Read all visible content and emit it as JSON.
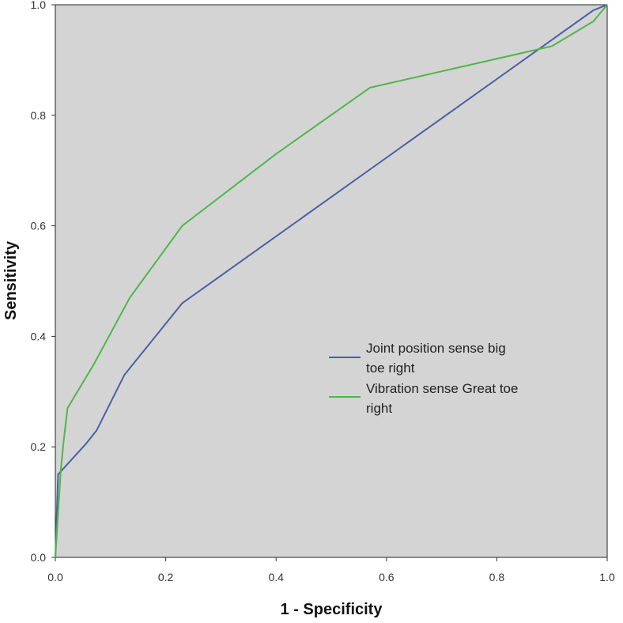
{
  "chart_data": {
    "type": "line",
    "title": "",
    "xlabel": "1 - Specificity",
    "ylabel": "Sensitivity",
    "xlim": [
      0,
      1
    ],
    "ylim": [
      0,
      1
    ],
    "xticks": [
      "0.0",
      "0.2",
      "0.4",
      "0.6",
      "0.8",
      "1.0"
    ],
    "yticks": [
      "0.0",
      "0.2",
      "0.4",
      "0.6",
      "0.8",
      "1.0"
    ],
    "grid": false,
    "legend_position": "center-right",
    "plot_background": "#d4d4d4",
    "series": [
      {
        "name": "Joint position sense big toe right",
        "legend_lines": [
          "Joint position sense big",
          "toe right"
        ],
        "color": "#4a5fa8",
        "points": [
          [
            0,
            0
          ],
          [
            0.005,
            0.15
          ],
          [
            0.055,
            0.205
          ],
          [
            0.075,
            0.23
          ],
          [
            0.125,
            0.33
          ],
          [
            0.23,
            0.46
          ],
          [
            0.975,
            0.99
          ],
          [
            1.0,
            1.0
          ]
        ]
      },
      {
        "name": "Vibration sense Great toe right",
        "legend_lines": [
          "Vibration sense Great toe",
          "right"
        ],
        "color": "#4db848",
        "points": [
          [
            0,
            0
          ],
          [
            0.01,
            0.16
          ],
          [
            0.015,
            0.21
          ],
          [
            0.022,
            0.27
          ],
          [
            0.07,
            0.35
          ],
          [
            0.135,
            0.47
          ],
          [
            0.23,
            0.6
          ],
          [
            0.4,
            0.73
          ],
          [
            0.57,
            0.85
          ],
          [
            0.9,
            0.925
          ],
          [
            0.975,
            0.97
          ],
          [
            1.0,
            1.0
          ]
        ]
      }
    ]
  }
}
